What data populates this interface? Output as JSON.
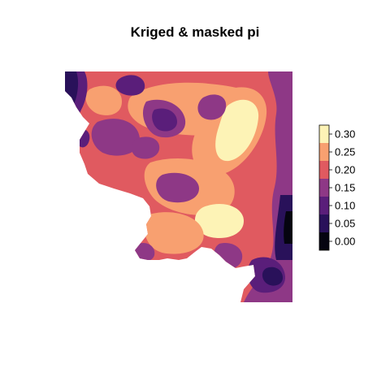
{
  "title": "Kriged & masked pi",
  "legend": {
    "ticks": [
      "0.00",
      "0.05",
      "0.10",
      "0.15",
      "0.20",
      "0.25",
      "0.30"
    ],
    "bins": [
      {
        "from": -0.025,
        "to": 0.025,
        "color": "#050410"
      },
      {
        "from": 0.025,
        "to": 0.075,
        "color": "#29115a"
      },
      {
        "from": 0.075,
        "to": 0.125,
        "color": "#5a1e7a"
      },
      {
        "from": 0.125,
        "to": 0.175,
        "color": "#8e3886"
      },
      {
        "from": 0.175,
        "to": 0.225,
        "color": "#e05a60"
      },
      {
        "from": 0.225,
        "to": 0.275,
        "color": "#f8a070"
      },
      {
        "from": 0.275,
        "to": 0.325,
        "color": "#fdf3b6"
      }
    ]
  },
  "map": {
    "background_color": "#ffffff",
    "dominant_fill": "#e05a60"
  }
}
